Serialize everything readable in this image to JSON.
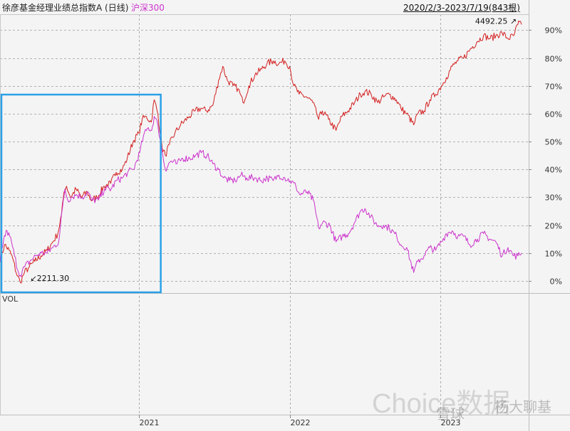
{
  "header": {
    "title": "徐彦基金经理业绩总指数A (日线)",
    "legend_secondary": "沪深300",
    "date_range": "2020/2/3-2023/7/19(843根)"
  },
  "panels": {
    "volume_label": "VOL"
  },
  "watermarks": {
    "choice": "Choice数据",
    "xueqiu": "雪球",
    "author": "杨大聊基"
  },
  "colors": {
    "index_line": "#d42020",
    "hs300_line": "#cc33cc",
    "highlight_box": "#2aa0e8",
    "grid": "#9a9a9a"
  },
  "chart_data": {
    "type": "line",
    "title": "徐彦基金经理业绩总指数A (日线)",
    "x_axis": {
      "start": "2020-02-03",
      "end": "2023-07-19",
      "tick_labels": [
        "2021",
        "2022",
        "2023"
      ],
      "tick_dates": [
        "2021-01-04",
        "2022-01-04",
        "2023-01-03"
      ]
    },
    "y_axis": {
      "unit": "%",
      "ylim": [
        -3,
        95
      ],
      "ticks": [
        0,
        10,
        20,
        30,
        40,
        50,
        60,
        70,
        80,
        90
      ],
      "tick_labels": [
        "0%",
        "10%",
        "20%",
        "30%",
        "40%",
        "50%",
        "60%",
        "70%",
        "80%",
        "90%"
      ],
      "side": "right",
      "grid": "dashed horizontal"
    },
    "annotations": [
      {
        "text": "2211.30",
        "date": "2020-03-23",
        "y": -0.5,
        "label_side": "right"
      },
      {
        "text": "4492.25",
        "date": "2023-07-14",
        "y": 93,
        "label_side": "left"
      }
    ],
    "highlight_region": {
      "start": "2020-02-03",
      "end": "2021-02-26",
      "color": "#2aa0e8"
    },
    "series": [
      {
        "name": "徐彦基金经理业绩总指数A",
        "color": "#d42020",
        "points": [
          [
            "2020-02-03",
            7
          ],
          [
            "2020-02-14",
            13
          ],
          [
            "2020-02-25",
            11
          ],
          [
            "2020-03-05",
            8
          ],
          [
            "2020-03-13",
            3
          ],
          [
            "2020-03-23",
            -0.5
          ],
          [
            "2020-04-02",
            3
          ],
          [
            "2020-04-14",
            5
          ],
          [
            "2020-04-27",
            7
          ],
          [
            "2020-05-12",
            9
          ],
          [
            "2020-05-27",
            11
          ],
          [
            "2020-06-10",
            14
          ],
          [
            "2020-06-22",
            17
          ],
          [
            "2020-07-01",
            24
          ],
          [
            "2020-07-07",
            32
          ],
          [
            "2020-07-13",
            34
          ],
          [
            "2020-07-23",
            30
          ],
          [
            "2020-08-05",
            33
          ],
          [
            "2020-08-18",
            30
          ],
          [
            "2020-09-01",
            32
          ],
          [
            "2020-09-10",
            29
          ],
          [
            "2020-09-25",
            30
          ],
          [
            "2020-10-12",
            34
          ],
          [
            "2020-10-28",
            35
          ],
          [
            "2020-11-10",
            39
          ],
          [
            "2020-11-25",
            40
          ],
          [
            "2020-12-07",
            44
          ],
          [
            "2020-12-21",
            50
          ],
          [
            "2021-01-04",
            53
          ],
          [
            "2021-01-12",
            58
          ],
          [
            "2021-01-22",
            59
          ],
          [
            "2021-02-03",
            57
          ],
          [
            "2021-02-10",
            65
          ],
          [
            "2021-02-19",
            60
          ],
          [
            "2021-03-01",
            48
          ],
          [
            "2021-03-09",
            45
          ],
          [
            "2021-03-19",
            49
          ],
          [
            "2021-04-01",
            53
          ],
          [
            "2021-04-15",
            56
          ],
          [
            "2021-05-06",
            59
          ],
          [
            "2021-05-20",
            61
          ],
          [
            "2021-06-03",
            62
          ],
          [
            "2021-06-17",
            61
          ],
          [
            "2021-07-02",
            63
          ],
          [
            "2021-07-16",
            72
          ],
          [
            "2021-07-26",
            77
          ],
          [
            "2021-08-06",
            72
          ],
          [
            "2021-08-20",
            70
          ],
          [
            "2021-09-01",
            69
          ],
          [
            "2021-09-13",
            64
          ],
          [
            "2021-09-27",
            70
          ],
          [
            "2021-10-12",
            74
          ],
          [
            "2021-10-28",
            76
          ],
          [
            "2021-11-10",
            78
          ],
          [
            "2021-11-25",
            79
          ],
          [
            "2021-12-09",
            78
          ],
          [
            "2021-12-23",
            79
          ],
          [
            "2022-01-04",
            77
          ],
          [
            "2022-01-14",
            70
          ],
          [
            "2022-01-27",
            67
          ],
          [
            "2022-02-14",
            66
          ],
          [
            "2022-03-01",
            64
          ],
          [
            "2022-03-15",
            58
          ],
          [
            "2022-03-24",
            61
          ],
          [
            "2022-04-08",
            58
          ],
          [
            "2022-04-26",
            54
          ],
          [
            "2022-05-10",
            59
          ],
          [
            "2022-05-25",
            61
          ],
          [
            "2022-06-10",
            64
          ],
          [
            "2022-06-24",
            67
          ],
          [
            "2022-07-05",
            68
          ],
          [
            "2022-07-20",
            67
          ],
          [
            "2022-08-05",
            64
          ],
          [
            "2022-08-19",
            66
          ],
          [
            "2022-09-02",
            67
          ],
          [
            "2022-09-19",
            65
          ],
          [
            "2022-09-30",
            62
          ],
          [
            "2022-10-14",
            60
          ],
          [
            "2022-10-31",
            56
          ],
          [
            "2022-11-10",
            60
          ],
          [
            "2022-11-25",
            61
          ],
          [
            "2022-12-09",
            65
          ],
          [
            "2022-12-23",
            67
          ],
          [
            "2023-01-06",
            70
          ],
          [
            "2023-01-18",
            73
          ],
          [
            "2023-02-01",
            77
          ],
          [
            "2023-02-15",
            79
          ],
          [
            "2023-03-01",
            80
          ],
          [
            "2023-03-16",
            83
          ],
          [
            "2023-04-03",
            86
          ],
          [
            "2023-04-18",
            88
          ],
          [
            "2023-05-04",
            87
          ],
          [
            "2023-05-18",
            88
          ],
          [
            "2023-06-02",
            89
          ],
          [
            "2023-06-16",
            87
          ],
          [
            "2023-06-30",
            88
          ],
          [
            "2023-07-10",
            92
          ],
          [
            "2023-07-14",
            93
          ],
          [
            "2023-07-19",
            92
          ]
        ]
      },
      {
        "name": "沪深300",
        "color": "#cc33cc",
        "points": [
          [
            "2020-02-03",
            7
          ],
          [
            "2020-02-12",
            15
          ],
          [
            "2020-02-20",
            18
          ],
          [
            "2020-03-02",
            14
          ],
          [
            "2020-03-09",
            9
          ],
          [
            "2020-03-19",
            3
          ],
          [
            "2020-03-23",
            2
          ],
          [
            "2020-04-02",
            5
          ],
          [
            "2020-04-15",
            7
          ],
          [
            "2020-04-29",
            9
          ],
          [
            "2020-05-13",
            10
          ],
          [
            "2020-05-27",
            10
          ],
          [
            "2020-06-10",
            12
          ],
          [
            "2020-06-24",
            14
          ],
          [
            "2020-07-03",
            26
          ],
          [
            "2020-07-09",
            33
          ],
          [
            "2020-07-16",
            29
          ],
          [
            "2020-07-24",
            30
          ],
          [
            "2020-08-06",
            31
          ],
          [
            "2020-08-20",
            30
          ],
          [
            "2020-09-03",
            32
          ],
          [
            "2020-09-11",
            29
          ],
          [
            "2020-09-28",
            29
          ],
          [
            "2020-10-13",
            33
          ],
          [
            "2020-10-29",
            33
          ],
          [
            "2020-11-11",
            36
          ],
          [
            "2020-11-26",
            37
          ],
          [
            "2020-12-08",
            39
          ],
          [
            "2020-12-22",
            40
          ],
          [
            "2021-01-06",
            46
          ],
          [
            "2021-01-15",
            52
          ],
          [
            "2021-01-27",
            55
          ],
          [
            "2021-02-04",
            54
          ],
          [
            "2021-02-10",
            59
          ],
          [
            "2021-02-19",
            56
          ],
          [
            "2021-03-01",
            47
          ],
          [
            "2021-03-09",
            40
          ],
          [
            "2021-03-22",
            43
          ],
          [
            "2021-04-06",
            42
          ],
          [
            "2021-04-20",
            44
          ],
          [
            "2021-05-07",
            44
          ],
          [
            "2021-05-21",
            45
          ],
          [
            "2021-06-04",
            46
          ],
          [
            "2021-06-18",
            45
          ],
          [
            "2021-07-02",
            42
          ],
          [
            "2021-07-16",
            40
          ],
          [
            "2021-07-28",
            37
          ],
          [
            "2021-08-11",
            36
          ],
          [
            "2021-08-25",
            36
          ],
          [
            "2021-09-08",
            38
          ],
          [
            "2021-09-22",
            37
          ],
          [
            "2021-10-13",
            37
          ],
          [
            "2021-10-27",
            36
          ],
          [
            "2021-11-11",
            37
          ],
          [
            "2021-11-25",
            36
          ],
          [
            "2021-12-09",
            38
          ],
          [
            "2021-12-23",
            37
          ],
          [
            "2022-01-05",
            36
          ],
          [
            "2022-01-19",
            34
          ],
          [
            "2022-01-28",
            31
          ],
          [
            "2022-02-15",
            32
          ],
          [
            "2022-03-02",
            29
          ],
          [
            "2022-03-15",
            19
          ],
          [
            "2022-03-25",
            21
          ],
          [
            "2022-04-11",
            20
          ],
          [
            "2022-04-26",
            14
          ],
          [
            "2022-05-11",
            16
          ],
          [
            "2022-05-26",
            17
          ],
          [
            "2022-06-10",
            21
          ],
          [
            "2022-06-24",
            25
          ],
          [
            "2022-07-05",
            26
          ],
          [
            "2022-07-19",
            23
          ],
          [
            "2022-08-03",
            20
          ],
          [
            "2022-08-19",
            20
          ],
          [
            "2022-09-02",
            19
          ],
          [
            "2022-09-20",
            16
          ],
          [
            "2022-09-30",
            13
          ],
          [
            "2022-10-14",
            12
          ],
          [
            "2022-10-31",
            3
          ],
          [
            "2022-11-10",
            7
          ],
          [
            "2022-11-25",
            9
          ],
          [
            "2022-12-09",
            12
          ],
          [
            "2022-12-23",
            11
          ],
          [
            "2023-01-06",
            14
          ],
          [
            "2023-01-18",
            17
          ],
          [
            "2023-02-01",
            18
          ],
          [
            "2023-02-15",
            16
          ],
          [
            "2023-03-01",
            16
          ],
          [
            "2023-03-16",
            13
          ],
          [
            "2023-04-03",
            15
          ],
          [
            "2023-04-18",
            17
          ],
          [
            "2023-05-04",
            15
          ],
          [
            "2023-05-18",
            14
          ],
          [
            "2023-06-02",
            9
          ],
          [
            "2023-06-16",
            12
          ],
          [
            "2023-06-30",
            9
          ],
          [
            "2023-07-10",
            9
          ],
          [
            "2023-07-19",
            10
          ]
        ]
      }
    ]
  }
}
